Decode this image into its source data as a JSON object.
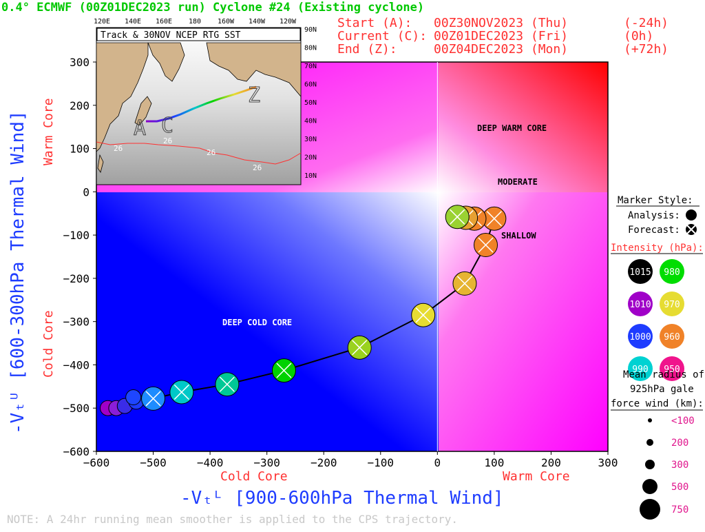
{
  "header": {
    "title": "0.4° ECMWF (00Z01DEC2023 run) Cyclone #24 (Existing cyclone)",
    "start": {
      "label": "Start (A):",
      "date": "00Z30NOV2023 (Thu)",
      "offset": "(-24h)"
    },
    "current": {
      "label": "Current (C):",
      "date": "00Z01DEC2023 (Fri)",
      "offset": "(0h)"
    },
    "end": {
      "label": "End (Z):",
      "date": "00Z04DEC2023 (Mon)",
      "offset": "(+72h)"
    }
  },
  "inset": {
    "title": "Track & 30NOV NCEP RTG SST",
    "lon_ticks": [
      "120E",
      "140E",
      "160E",
      "180",
      "160W",
      "140W",
      "120W"
    ],
    "lat_ticks": [
      "90N",
      "80N",
      "70N",
      "60N",
      "50N",
      "40N",
      "30N",
      "20N",
      "10N"
    ],
    "letters": [
      "A",
      "C",
      "Z"
    ],
    "sst_labels": [
      "26",
      "26",
      "26",
      "26"
    ]
  },
  "regions": {
    "deep_warm": "DEEP WARM CORE",
    "moderate": "MODERATE",
    "shallow": "SHALLOW",
    "deep_cold": "DEEP COLD CORE"
  },
  "axes": {
    "xlabel": "-Vₜᴸ [900-600hPa Thermal Wind]",
    "ylabel": "-Vₜᵁ [600-300hPa Thermal Wind]",
    "x_left": "Cold Core",
    "x_right": "Warm Core",
    "y_top": "Warm Core",
    "y_bottom": "Cold Core"
  },
  "legend": {
    "marker_style": "Marker Style:",
    "analysis": "Analysis:",
    "forecast": "Forecast:",
    "intensity": "Intensity (hPa):",
    "intensity_items": [
      {
        "label": "1015",
        "color": "#000000"
      },
      {
        "label": "980",
        "color": "#00dd00"
      },
      {
        "label": "1010",
        "color": "#a000c8"
      },
      {
        "label": "970",
        "color": "#e6dc32"
      },
      {
        "label": "1000",
        "color": "#1e3cff"
      },
      {
        "label": "960",
        "color": "#f08228"
      },
      {
        "label": "990",
        "color": "#00d2d2"
      },
      {
        "label": "950",
        "color": "#f0148c"
      }
    ],
    "radius_title_1": "Mean radius of",
    "radius_title_2": "925hPa gale",
    "radius_title_3": "force wind (km):",
    "radius_items": [
      "<100",
      "200",
      "300",
      "500",
      "750"
    ]
  },
  "note": "NOTE:  A 24hr running mean smoother is applied to the CPS trajectory.",
  "chart_data": {
    "type": "scatter",
    "xlim": [
      -600,
      300
    ],
    "ylim": [
      -600,
      300
    ],
    "xticks": [
      -600,
      -500,
      -400,
      -300,
      -200,
      -100,
      0,
      100,
      200,
      300
    ],
    "yticks": [
      300,
      200,
      100,
      0,
      -100,
      -200,
      -300,
      -400,
      -500,
      -600
    ],
    "track": [
      {
        "x": -580,
        "y": -500,
        "color": "#a000c8",
        "kind": "analysis"
      },
      {
        "x": -565,
        "y": -500,
        "color": "#8a1ed8",
        "kind": "analysis"
      },
      {
        "x": -550,
        "y": -495,
        "color": "#3a2ce8",
        "kind": "analysis"
      },
      {
        "x": -530,
        "y": -485,
        "color": "#1e3cff",
        "kind": "analysis"
      },
      {
        "x": -535,
        "y": -475,
        "color": "#1e46ff",
        "kind": "analysis"
      },
      {
        "x": -500,
        "y": -478,
        "color": "#1e8cff",
        "kind": "forecast"
      },
      {
        "x": -450,
        "y": -463,
        "color": "#00c8c8",
        "kind": "forecast"
      },
      {
        "x": -370,
        "y": -445,
        "color": "#00c896",
        "kind": "forecast"
      },
      {
        "x": -270,
        "y": -413,
        "color": "#00d200",
        "kind": "forecast"
      },
      {
        "x": -137,
        "y": -360,
        "color": "#9ad21e",
        "kind": "forecast"
      },
      {
        "x": -25,
        "y": -285,
        "color": "#e6dc32",
        "kind": "forecast"
      },
      {
        "x": 48,
        "y": -212,
        "color": "#e6b432",
        "kind": "forecast"
      },
      {
        "x": 85,
        "y": -123,
        "color": "#f08228",
        "kind": "forecast"
      },
      {
        "x": 100,
        "y": -62,
        "color": "#f08228",
        "kind": "forecast"
      },
      {
        "x": 65,
        "y": -62,
        "color": "#f08228",
        "kind": "forecast"
      },
      {
        "x": 50,
        "y": -60,
        "color": "#e6a032",
        "kind": "forecast"
      },
      {
        "x": 35,
        "y": -58,
        "color": "#9ad232",
        "kind": "forecast"
      }
    ]
  }
}
